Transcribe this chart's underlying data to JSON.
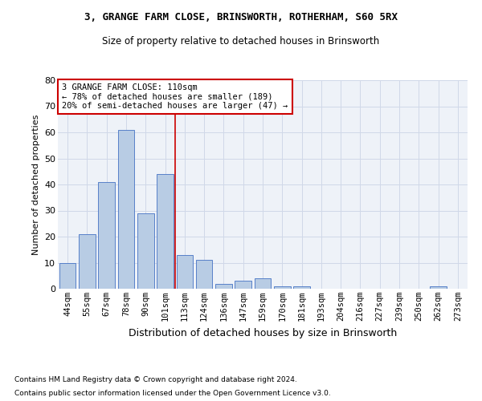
{
  "title1": "3, GRANGE FARM CLOSE, BRINSWORTH, ROTHERHAM, S60 5RX",
  "title2": "Size of property relative to detached houses in Brinsworth",
  "xlabel": "Distribution of detached houses by size in Brinsworth",
  "ylabel": "Number of detached properties",
  "bar_labels": [
    "44sqm",
    "55sqm",
    "67sqm",
    "78sqm",
    "90sqm",
    "101sqm",
    "113sqm",
    "124sqm",
    "136sqm",
    "147sqm",
    "159sqm",
    "170sqm",
    "181sqm",
    "193sqm",
    "204sqm",
    "216sqm",
    "227sqm",
    "239sqm",
    "250sqm",
    "262sqm",
    "273sqm"
  ],
  "bar_values": [
    10,
    21,
    41,
    61,
    29,
    44,
    13,
    11,
    2,
    3,
    4,
    1,
    1,
    0,
    0,
    0,
    0,
    0,
    0,
    1,
    0
  ],
  "bar_color": "#b8cce4",
  "bar_edge_color": "#4472c4",
  "vline_x": 5.5,
  "vline_color": "#cc0000",
  "annotation_text": "3 GRANGE FARM CLOSE: 110sqm\n← 78% of detached houses are smaller (189)\n20% of semi-detached houses are larger (47) →",
  "annotation_box_color": "#cc0000",
  "ylim": [
    0,
    80
  ],
  "yticks": [
    0,
    10,
    20,
    30,
    40,
    50,
    60,
    70,
    80
  ],
  "grid_color": "#d0d8e8",
  "background_color": "#eef2f8",
  "footnote1": "Contains HM Land Registry data © Crown copyright and database right 2024.",
  "footnote2": "Contains public sector information licensed under the Open Government Licence v3.0."
}
